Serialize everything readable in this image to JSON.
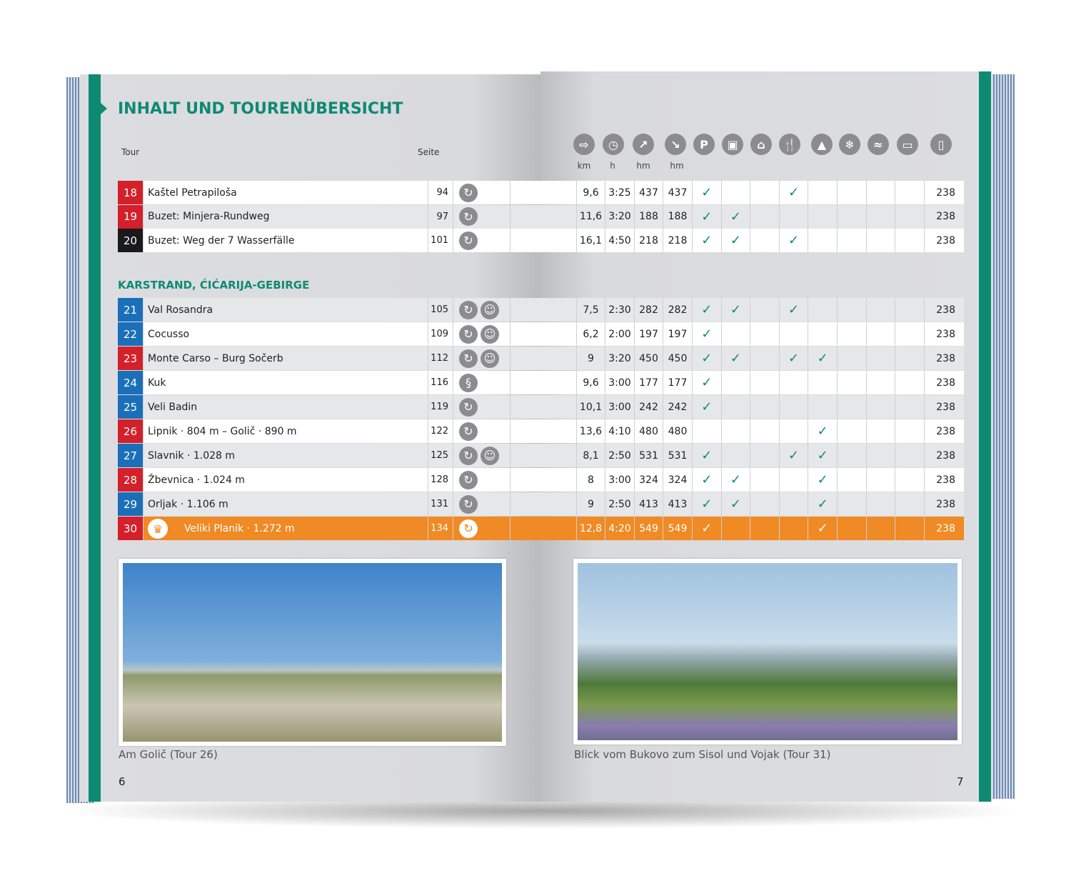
{
  "title": "INHALT UND TOURENÜBERSICHT",
  "header": {
    "tour": "Tour",
    "seite": "Seite",
    "units": [
      "km",
      "h",
      "hm",
      "hm"
    ],
    "icons": [
      "signpost-icon",
      "clock-icon",
      "ascent-icon",
      "descent-icon",
      "parking-icon",
      "bus-icon",
      "cable-car-icon",
      "restaurant-icon",
      "hut-icon",
      "snow-icon",
      "beach-icon",
      "bed-icon",
      "document-icon"
    ],
    "icon_glyphs": [
      "⇨",
      "◷",
      "↗",
      "↘",
      "P",
      "▣",
      "⌂",
      "🍴",
      "▲",
      "❄",
      "≈",
      "▭",
      "▯"
    ]
  },
  "section": "KARSTRAND, ĆIĆARIJA-GEBIRGE",
  "colors": {
    "green": "#0e8a73",
    "red": "#d3202a",
    "blue": "#1a6fb8",
    "black": "#1a1a1a",
    "orange": "#f08a24"
  },
  "rows_top": [
    {
      "num": "18",
      "color": "red",
      "name": "Kaštel Petrapiloša",
      "seite": "94",
      "icons": [
        "circular"
      ],
      "km": "9,6",
      "h": "3:25",
      "up": "437",
      "down": "437",
      "checks": [
        1,
        0,
        0,
        1,
        0,
        0,
        0,
        0
      ],
      "page": "238"
    },
    {
      "num": "19",
      "color": "red",
      "name": "Buzet: Minjera-Rundweg",
      "seite": "97",
      "icons": [
        "circular"
      ],
      "km": "11,6",
      "h": "3:20",
      "up": "188",
      "down": "188",
      "checks": [
        1,
        1,
        0,
        0,
        0,
        0,
        0,
        0
      ],
      "page": "238"
    },
    {
      "num": "20",
      "color": "black",
      "name": "Buzet: Weg der 7 Wasserfälle",
      "seite": "101",
      "icons": [
        "circular"
      ],
      "km": "16,1",
      "h": "4:50",
      "up": "218",
      "down": "218",
      "checks": [
        1,
        1,
        0,
        1,
        0,
        0,
        0,
        0
      ],
      "page": "238"
    }
  ],
  "rows": [
    {
      "num": "21",
      "color": "blue",
      "name": "Val Rosandra",
      "seite": "105",
      "icons": [
        "circular",
        "kids"
      ],
      "km": "7,5",
      "h": "2:30",
      "up": "282",
      "down": "282",
      "checks": [
        1,
        1,
        0,
        1,
        0,
        0,
        0,
        0
      ],
      "page": "238"
    },
    {
      "num": "22",
      "color": "blue",
      "name": "Cocusso",
      "seite": "109",
      "icons": [
        "circular",
        "kids"
      ],
      "km": "6,2",
      "h": "2:00",
      "up": "197",
      "down": "197",
      "checks": [
        1,
        0,
        0,
        0,
        0,
        0,
        0,
        0
      ],
      "page": "238"
    },
    {
      "num": "23",
      "color": "red",
      "name": "Monte Carso – Burg Sočerb",
      "seite": "112",
      "icons": [
        "circular",
        "kids"
      ],
      "km": "9",
      "h": "3:20",
      "up": "450",
      "down": "450",
      "checks": [
        1,
        1,
        0,
        1,
        1,
        0,
        0,
        0
      ],
      "page": "238"
    },
    {
      "num": "24",
      "color": "blue",
      "name": "Kuk",
      "seite": "116",
      "icons": [
        "route"
      ],
      "km": "9,6",
      "h": "3:00",
      "up": "177",
      "down": "177",
      "checks": [
        1,
        0,
        0,
        0,
        0,
        0,
        0,
        0
      ],
      "page": "238"
    },
    {
      "num": "25",
      "color": "blue",
      "name": "Veli Badin",
      "seite": "119",
      "icons": [
        "circular"
      ],
      "km": "10,1",
      "h": "3:00",
      "up": "242",
      "down": "242",
      "checks": [
        1,
        0,
        0,
        0,
        0,
        0,
        0,
        0
      ],
      "page": "238"
    },
    {
      "num": "26",
      "color": "red",
      "name": "Lipnik · 804 m – Golič · 890 m",
      "seite": "122",
      "icons": [
        "circular"
      ],
      "km": "13,6",
      "h": "4:10",
      "up": "480",
      "down": "480",
      "checks": [
        0,
        0,
        0,
        0,
        1,
        0,
        0,
        0
      ],
      "page": "238"
    },
    {
      "num": "27",
      "color": "blue",
      "name": "Slavnik · 1.028 m",
      "seite": "125",
      "icons": [
        "circular",
        "kids"
      ],
      "km": "8,1",
      "h": "2:50",
      "up": "531",
      "down": "531",
      "checks": [
        1,
        0,
        0,
        1,
        1,
        0,
        0,
        0
      ],
      "page": "238"
    },
    {
      "num": "28",
      "color": "red",
      "name": "Žbevnica · 1.024 m",
      "seite": "128",
      "icons": [
        "circular"
      ],
      "km": "8",
      "h": "3:00",
      "up": "324",
      "down": "324",
      "checks": [
        1,
        1,
        0,
        0,
        1,
        0,
        0,
        0
      ],
      "page": "238"
    },
    {
      "num": "29",
      "color": "blue",
      "name": "Orljak · 1.106 m",
      "seite": "131",
      "icons": [
        "circular"
      ],
      "km": "9",
      "h": "2:50",
      "up": "413",
      "down": "413",
      "checks": [
        1,
        1,
        0,
        0,
        1,
        0,
        0,
        0
      ],
      "page": "238"
    },
    {
      "num": "30",
      "color": "red",
      "name": "Veliki Planik  · 1.272 m",
      "seite": "134",
      "icons": [
        "circular"
      ],
      "km": "12,8",
      "h": "4:20",
      "up": "549",
      "down": "549",
      "checks": [
        1,
        0,
        0,
        0,
        1,
        0,
        0,
        0
      ],
      "page": "238",
      "highlight": true
    }
  ],
  "captions": {
    "left": "Am Golič (Tour 26)",
    "right": "Blick vom Bukovo zum Sisol und Vojak (Tour 31)"
  },
  "page_numbers": {
    "left": "6",
    "right": "7"
  }
}
